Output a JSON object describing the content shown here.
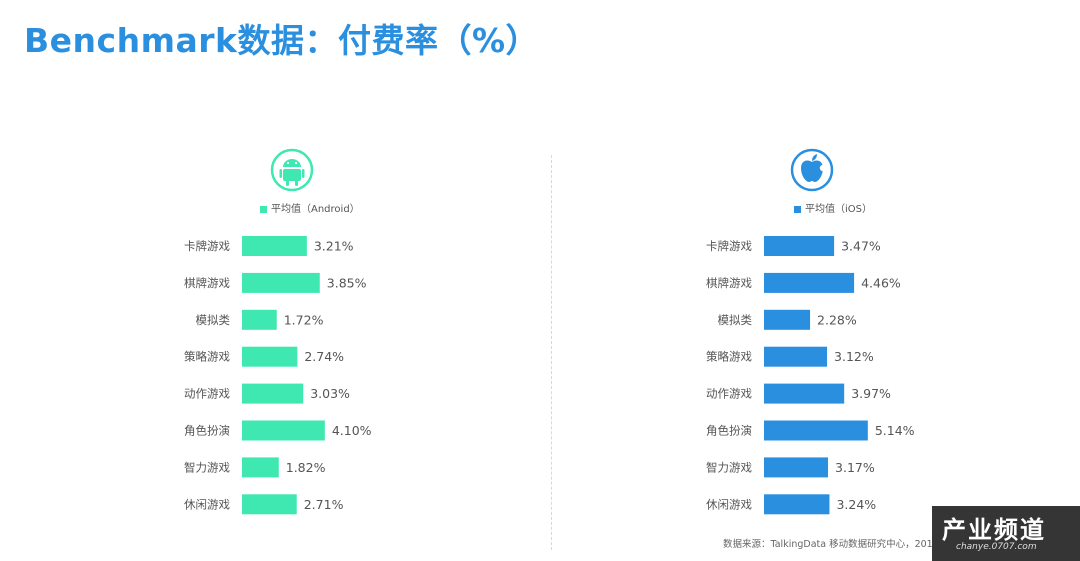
{
  "title": "Benchmark数据：付费率（%）",
  "source": "数据来源：TalkingData 移动数据研究中心，201",
  "watermark": {
    "main": "产业频道",
    "sub": "chanye.0707.com"
  },
  "colors": {
    "android": "#3ee8b0",
    "ios": "#2b8fe0",
    "title": "#2b8fe0"
  },
  "chart_data": [
    {
      "type": "bar",
      "orientation": "horizontal",
      "icon": "android-icon",
      "legend": "平均值（Android）",
      "categories": [
        "卡牌游戏",
        "棋牌游戏",
        "模拟类",
        "策略游戏",
        "动作游戏",
        "角色扮演",
        "智力游戏",
        "休闲游戏"
      ],
      "values": [
        3.21,
        3.85,
        1.72,
        2.74,
        3.03,
        4.1,
        1.82,
        2.71
      ],
      "value_labels": [
        "3.21%",
        "3.85%",
        "1.72%",
        "2.74%",
        "3.03%",
        "4.10%",
        "1.82%",
        "2.71%"
      ],
      "xlim": [
        0,
        5.5
      ]
    },
    {
      "type": "bar",
      "orientation": "horizontal",
      "icon": "apple-icon",
      "legend": "平均值（iOS）",
      "categories": [
        "卡牌游戏",
        "棋牌游戏",
        "模拟类",
        "策略游戏",
        "动作游戏",
        "角色扮演",
        "智力游戏",
        "休闲游戏"
      ],
      "values": [
        3.47,
        4.46,
        2.28,
        3.12,
        3.97,
        5.14,
        3.17,
        3.24
      ],
      "value_labels": [
        "3.47%",
        "4.46%",
        "2.28%",
        "3.12%",
        "3.97%",
        "5.14%",
        "3.17%",
        "3.24%"
      ],
      "xlim": [
        0,
        5.5
      ]
    }
  ]
}
